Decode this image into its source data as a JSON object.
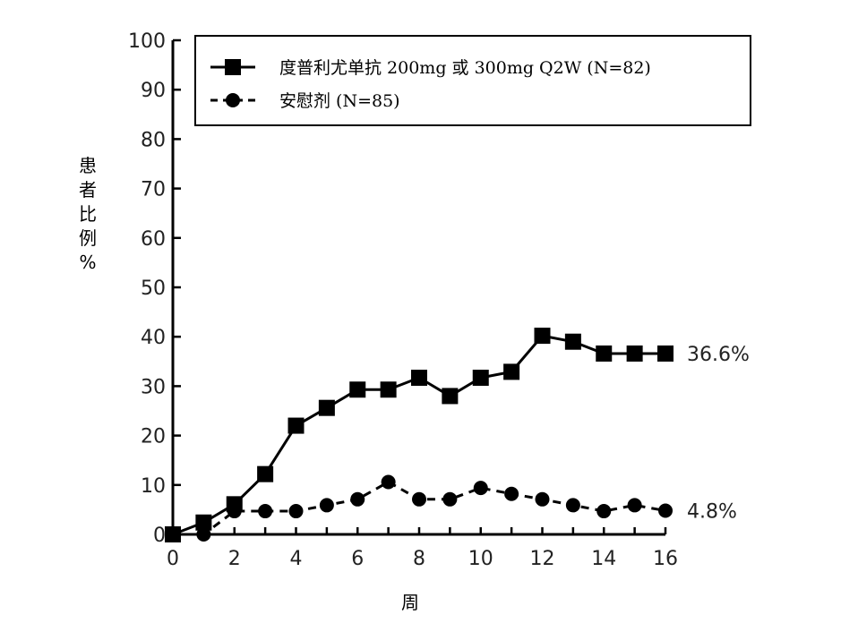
{
  "chart_data": {
    "type": "line",
    "xlabel": "周",
    "ylabel_chars": [
      "患",
      "者",
      "比",
      "例",
      "%"
    ],
    "ylim": [
      0,
      100
    ],
    "xlim": [
      0,
      16
    ],
    "yticks": [
      0,
      10,
      20,
      30,
      40,
      50,
      60,
      70,
      80,
      90,
      100
    ],
    "xticks": [
      0,
      2,
      4,
      6,
      8,
      10,
      12,
      14,
      16
    ],
    "legend_position": "top",
    "grid": false,
    "series": [
      {
        "name": "度普利尤单抗 200mg 或 300mg Q2W (N=82)",
        "marker": "square",
        "line_style": "solid",
        "color": "#000000",
        "x": [
          0,
          1,
          2,
          3,
          4,
          5,
          6,
          7,
          8,
          9,
          10,
          11,
          12,
          13,
          14,
          15,
          16
        ],
        "y": [
          0,
          2.4,
          6.1,
          12.2,
          22.0,
          25.6,
          29.3,
          29.3,
          31.7,
          28.0,
          31.7,
          32.9,
          40.2,
          39.0,
          36.6,
          36.6,
          36.6
        ],
        "end_label": "36.6%"
      },
      {
        "name": "安慰剂  (N=85)",
        "marker": "circle",
        "line_style": "dashed",
        "color": "#000000",
        "x": [
          0,
          1,
          2,
          3,
          4,
          5,
          6,
          7,
          8,
          9,
          10,
          11,
          12,
          13,
          14,
          15,
          16
        ],
        "y": [
          0,
          0,
          4.7,
          4.7,
          4.7,
          5.9,
          7.1,
          10.6,
          7.1,
          7.1,
          9.4,
          8.2,
          7.1,
          5.9,
          4.7,
          5.9,
          4.8
        ],
        "end_label": "4.8%"
      }
    ]
  }
}
